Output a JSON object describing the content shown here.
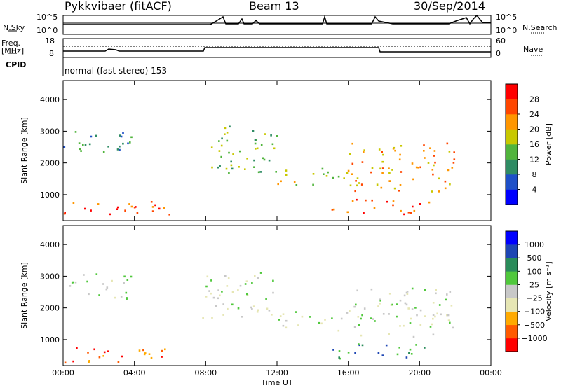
{
  "header": {
    "radar": "Pykkvibaer (fitACF)",
    "beam": "Beam 13",
    "date": "30/Sep/2014"
  },
  "status": {
    "nsky_label": "N.Sky",
    "nsearch_label": "N.Search",
    "freq_label_line1": "Freq.",
    "freq_label_line2": "[MHz]",
    "nave_label": "Nave",
    "cpid_label": "CPID",
    "mode_text": "normal (fast stereo) 153",
    "noise_ticks": [
      "10^5",
      "10^0"
    ],
    "freq_ticks": [
      "18",
      "8"
    ],
    "nave_ticks": [
      "60",
      "0"
    ]
  },
  "chart_data": [
    {
      "type": "heatmap",
      "name": "power",
      "ylabel": "Slant Range [km]",
      "xlabel": "",
      "ylim": [
        180,
        4600
      ],
      "xlim": [
        0,
        24
      ],
      "yticks": [
        "1000",
        "2000",
        "3000",
        "4000"
      ],
      "xticks": [
        "00:00",
        "04:00",
        "08:00",
        "12:00",
        "16:00",
        "20:00",
        "00:00"
      ],
      "colorbar_label": "Power [dB]",
      "colorbar_ticks": [
        "28",
        "24",
        "20",
        "16",
        "12",
        "8",
        "4"
      ],
      "colors": [
        "#0000ff",
        "#1e50c8",
        "#2f8c64",
        "#50b43c",
        "#c8c800",
        "#ff9600",
        "#ff4600",
        "#ff0000"
      ],
      "echo_bands": [
        {
          "t0": 0.0,
          "t1": 3.8,
          "r0": 2300,
          "r1": 3100,
          "level": 2
        },
        {
          "t0": 0.0,
          "t1": 6.2,
          "r0": 300,
          "r1": 800,
          "level": 6
        },
        {
          "t0": 7.8,
          "t1": 12.0,
          "r0": 1700,
          "r1": 3200,
          "level": 3
        },
        {
          "t0": 12.0,
          "t1": 16.0,
          "r0": 1300,
          "r1": 1900,
          "level": 4
        },
        {
          "t0": 16.0,
          "t1": 22.0,
          "r0": 1100,
          "r1": 2700,
          "level": 5
        },
        {
          "t0": 15.0,
          "t1": 20.5,
          "r0": 400,
          "r1": 900,
          "level": 6
        }
      ]
    },
    {
      "type": "heatmap",
      "name": "velocity",
      "ylabel": "Slant Range [km]",
      "xlabel": "Time UT",
      "ylim": [
        180,
        4600
      ],
      "xlim": [
        0,
        24
      ],
      "yticks": [
        "1000",
        "2000",
        "3000",
        "4000"
      ],
      "xticks": [
        "00:00",
        "04:00",
        "08:00",
        "12:00",
        "16:00",
        "20:00",
        "00:00"
      ],
      "colorbar_label": "Velocity [m s⁻¹]",
      "colorbar_ticks": [
        "1000",
        "500",
        "100",
        "25",
        "−25",
        "−100",
        "−500",
        "−1000"
      ],
      "colors": [
        "#ff0000",
        "#ff5a00",
        "#ffaa00",
        "#e6e6b4",
        "#c8c8c8",
        "#50c83c",
        "#2a8c5a",
        "#1e46b4",
        "#0000ff"
      ],
      "echo_bands": [
        {
          "t0": 0.0,
          "t1": 3.8,
          "r0": 2300,
          "r1": 3100,
          "level": 4
        },
        {
          "t0": 0.0,
          "t1": 6.2,
          "r0": 300,
          "r1": 800,
          "level": 1
        },
        {
          "t0": 7.8,
          "t1": 12.0,
          "r0": 1700,
          "r1": 3200,
          "level": 4
        },
        {
          "t0": 12.0,
          "t1": 16.0,
          "r0": 1300,
          "r1": 1900,
          "level": 4
        },
        {
          "t0": 16.0,
          "t1": 22.0,
          "r0": 1100,
          "r1": 2700,
          "level": 4
        },
        {
          "t0": 15.0,
          "t1": 20.5,
          "r0": 400,
          "r1": 900,
          "level": 6
        }
      ]
    }
  ]
}
